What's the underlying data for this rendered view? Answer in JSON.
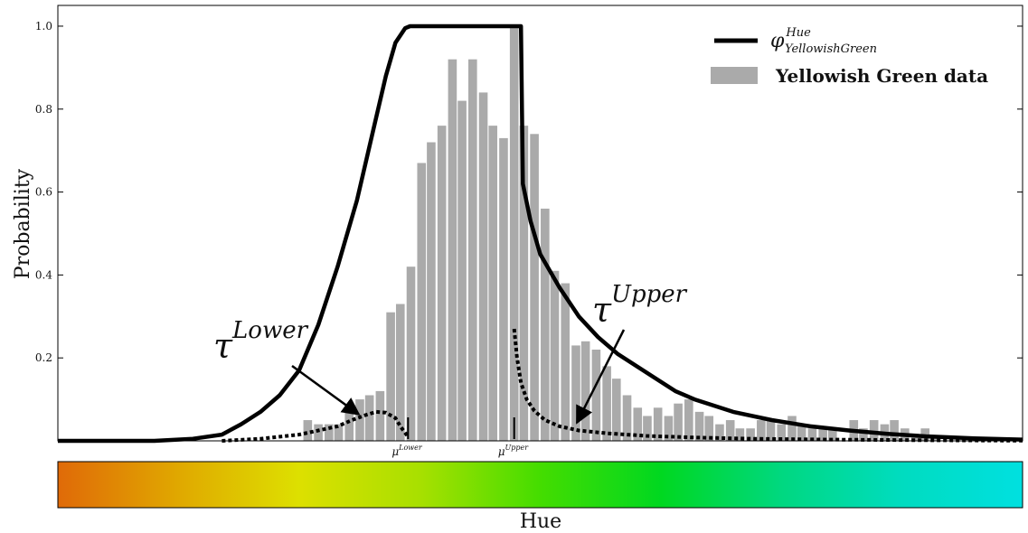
{
  "chart_data": {
    "type": "bar",
    "title": "",
    "xlabel": "Hue",
    "ylabel": "Probability",
    "ylim": [
      0,
      1.0
    ],
    "xlim": [
      0,
      100
    ],
    "yticks": [
      0.2,
      0.4,
      0.6,
      0.8,
      1.0
    ],
    "ytick_labels": [
      "0.2",
      "0.4",
      "0.6",
      "0.8",
      "1.0"
    ],
    "legend": {
      "placement": "top-right",
      "entries": [
        {
          "symbol": "φ",
          "superscript": "Hue",
          "subscript": "YellowishGreen",
          "style": "line",
          "color": "#000000"
        },
        {
          "label": "Yellowish Green data",
          "style": "bar",
          "color": "#aaaaaa"
        }
      ]
    },
    "series": [
      {
        "name": "Yellowish Green data",
        "style": "bar",
        "color": "#aaaaaa",
        "bar_width": 0.9,
        "x": [
          25.9,
          27.0,
          28.1,
          29.1,
          30.2,
          31.3,
          32.3,
          33.4,
          34.5,
          35.5,
          36.6,
          37.7,
          38.7,
          39.8,
          40.9,
          41.9,
          43.0,
          44.1,
          45.1,
          46.2,
          47.3,
          48.3,
          49.4,
          50.5,
          51.5,
          52.6,
          53.7,
          54.7,
          55.8,
          56.9,
          57.9,
          59.0,
          60.1,
          61.1,
          62.2,
          63.3,
          64.3,
          65.4,
          66.5,
          67.5,
          68.6,
          69.7,
          70.7,
          71.8,
          72.9,
          73.9,
          75.0,
          76.1,
          77.1,
          78.2,
          79.3,
          80.3,
          82.5,
          83.5,
          84.6,
          85.7,
          86.7,
          87.8,
          88.9,
          89.9,
          91.0
        ],
        "values": [
          0.05,
          0.04,
          0.04,
          0.04,
          0.08,
          0.1,
          0.11,
          0.12,
          0.31,
          0.33,
          0.42,
          0.67,
          0.72,
          0.76,
          0.92,
          0.82,
          0.92,
          0.84,
          0.76,
          0.73,
          1.0,
          0.76,
          0.74,
          0.56,
          0.41,
          0.38,
          0.23,
          0.24,
          0.22,
          0.18,
          0.15,
          0.11,
          0.08,
          0.06,
          0.08,
          0.06,
          0.09,
          0.1,
          0.07,
          0.06,
          0.04,
          0.05,
          0.03,
          0.03,
          0.05,
          0.05,
          0.04,
          0.06,
          0.04,
          0.03,
          0.03,
          0.03,
          0.05,
          0.03,
          0.05,
          0.04,
          0.05,
          0.03,
          0.01,
          0.03,
          0.01
        ]
      },
      {
        "name": "φ Hue YellowishGreen",
        "style": "solid-line",
        "color": "#000000",
        "x": [
          0,
          10,
          14,
          17,
          19,
          21,
          23,
          25,
          27,
          29,
          31,
          33,
          34,
          35,
          36,
          36.5,
          37,
          38,
          40,
          42,
          44,
          46,
          48,
          48.2,
          49,
          50,
          52,
          54,
          56,
          58,
          60,
          62,
          64,
          66,
          68,
          70,
          74,
          78,
          82,
          86,
          90,
          95,
          100
        ],
        "values": [
          0.0,
          0.0,
          0.005,
          0.015,
          0.04,
          0.07,
          0.11,
          0.17,
          0.28,
          0.42,
          0.58,
          0.78,
          0.88,
          0.96,
          0.995,
          1.0,
          1.0,
          1.0,
          1.0,
          1.0,
          1.0,
          1.0,
          1.0,
          0.62,
          0.53,
          0.45,
          0.37,
          0.3,
          0.25,
          0.21,
          0.18,
          0.15,
          0.12,
          0.1,
          0.085,
          0.07,
          0.05,
          0.035,
          0.025,
          0.017,
          0.011,
          0.006,
          0.003
        ]
      },
      {
        "name": "τ Lower",
        "style": "dotted-line",
        "color": "#000000",
        "x": [
          17,
          21,
          25,
          27,
          29,
          30.5,
          32,
          33,
          34,
          35,
          35.5,
          36.3
        ],
        "values": [
          0.0,
          0.005,
          0.015,
          0.025,
          0.035,
          0.05,
          0.063,
          0.07,
          0.068,
          0.055,
          0.035,
          0.01
        ]
      },
      {
        "name": "τ Upper",
        "style": "dotted-line",
        "color": "#000000",
        "x": [
          47.3,
          47.6,
          48.0,
          48.6,
          49.4,
          50.5,
          52.0,
          54,
          57,
          61,
          66,
          72,
          80,
          90,
          100
        ],
        "values": [
          0.27,
          0.2,
          0.14,
          0.1,
          0.072,
          0.05,
          0.035,
          0.025,
          0.018,
          0.012,
          0.008,
          0.005,
          0.003,
          0.0015,
          0.0005
        ]
      }
    ],
    "markers": [
      {
        "label": "μ",
        "superscript": "Lower",
        "x": 36.3
      },
      {
        "label": "μ",
        "superscript": "Upper",
        "x": 47.3
      }
    ],
    "annotations": [
      {
        "label": "τ",
        "superscript": "Lower",
        "arrow_to": {
          "x": 31.2,
          "y": 0.055
        }
      },
      {
        "label": "τ",
        "superscript": "Upper",
        "arrow_to": {
          "x": 53.8,
          "y": 0.035
        }
      }
    ],
    "colorbar": {
      "stops": [
        "#e06a08",
        "#e0a800",
        "#dde000",
        "#a8e000",
        "#44dd00",
        "#00d820",
        "#00d880",
        "#00dcc0",
        "#00e0e0"
      ]
    },
    "grid": false
  }
}
